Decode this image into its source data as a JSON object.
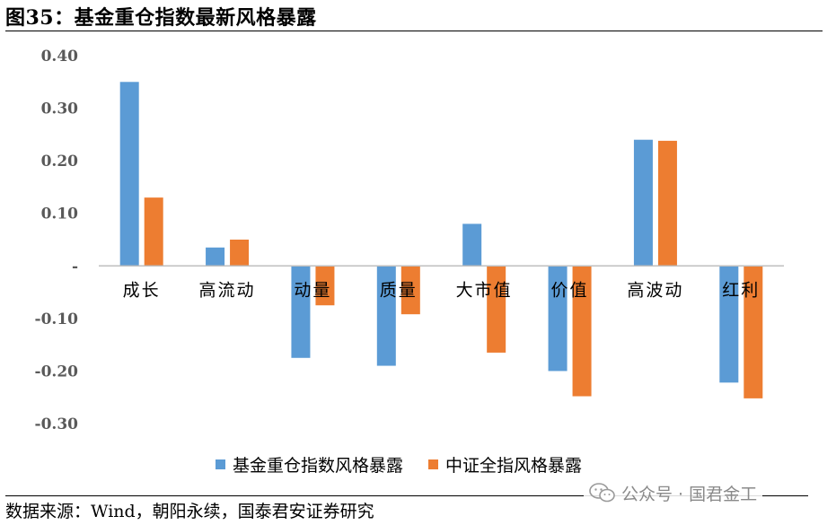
{
  "header": {
    "title": "图35：基金重仓指数最新风格暴露"
  },
  "footer": {
    "source": "数据来源：Wind，朝阳永续，国泰君安证券研究",
    "watermark": "公众号 · 国君金工"
  },
  "colors": {
    "series_1": "#5B9BD5",
    "series_2": "#ED7D31",
    "axis": "#bfbfbf",
    "tick_text": "#595959"
  },
  "chart_data": {
    "type": "bar",
    "categories": [
      "成长",
      "高流动",
      "动量",
      "质量",
      "大市值",
      "价值",
      "高波动",
      "红利"
    ],
    "series": [
      {
        "name": "基金重仓指数风格暴露",
        "values": [
          0.35,
          0.035,
          -0.175,
          -0.19,
          0.08,
          -0.2,
          0.24,
          -0.222
        ]
      },
      {
        "name": "中证全指风格暴露",
        "values": [
          0.13,
          0.05,
          -0.075,
          -0.092,
          -0.165,
          -0.248,
          0.238,
          -0.252
        ]
      }
    ],
    "yticks": [
      "0.40",
      "0.30",
      "0.20",
      "0.10",
      "-",
      "-0.10",
      "-0.20",
      "-0.30"
    ],
    "ylim": [
      -0.3,
      0.4
    ],
    "grid": false,
    "legend_position": "bottom"
  }
}
